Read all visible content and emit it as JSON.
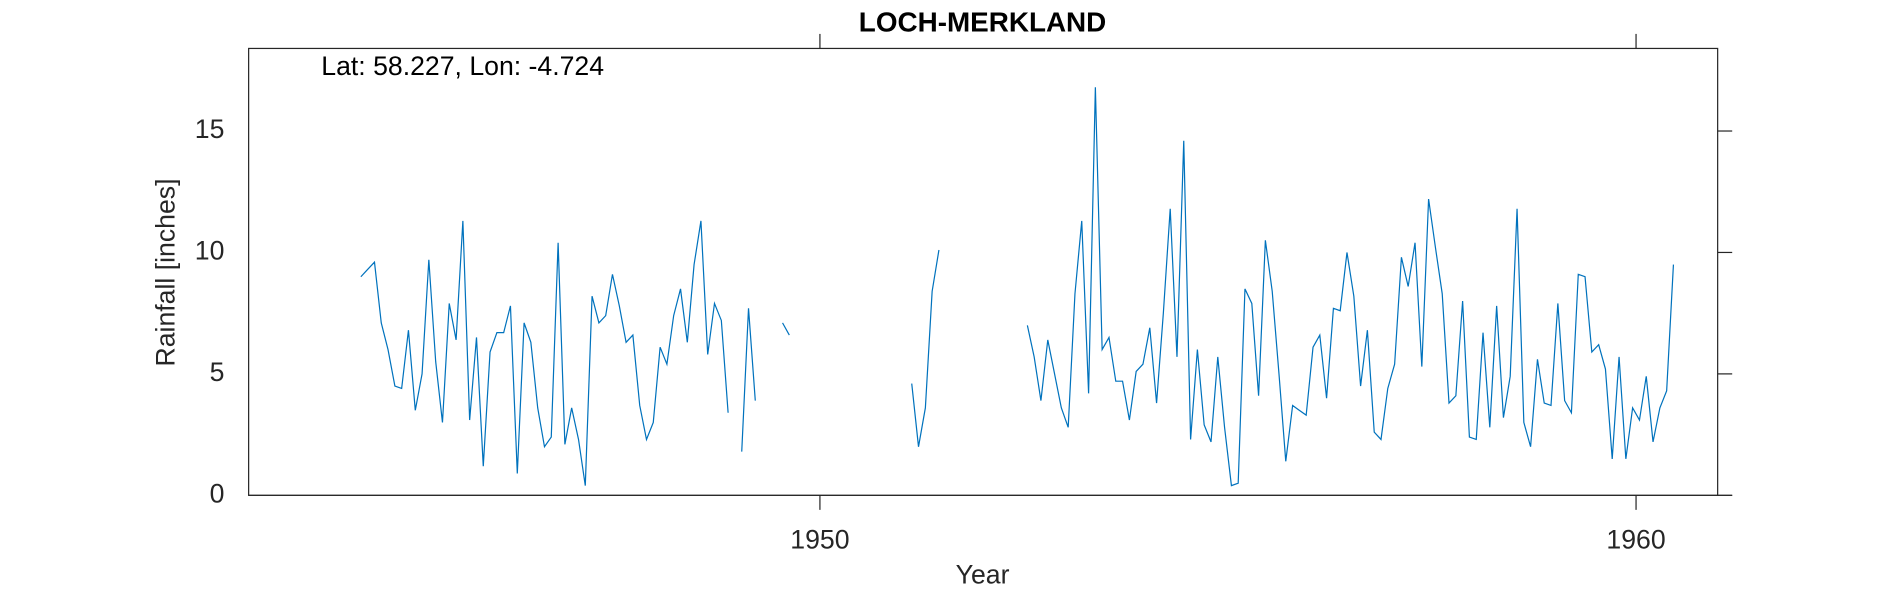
{
  "chart_data": {
    "type": "line",
    "title": "LOCH-MERKLAND",
    "annotation": "Lat: 58.227, Lon: -4.724",
    "x_label": "Year",
    "y_label": "Rainfall [inches]",
    "color": "#0072bd",
    "xlim": [
      1943,
      1961
    ],
    "xticks": [
      1950,
      1960
    ],
    "ylim": [
      0,
      18.4
    ],
    "yticks": [
      0,
      5,
      10,
      15
    ],
    "x": [
      1944.375,
      1944.458,
      1944.542,
      1944.625,
      1944.708,
      1944.792,
      1944.875,
      1944.958,
      1945.042,
      1945.125,
      1945.208,
      1945.292,
      1945.375,
      1945.458,
      1945.542,
      1945.625,
      1945.708,
      1945.792,
      1945.875,
      1945.958,
      1946.042,
      1946.125,
      1946.208,
      1946.292,
      1946.375,
      1946.458,
      1946.542,
      1946.625,
      1946.708,
      1946.792,
      1946.875,
      1946.958,
      1947.042,
      1947.125,
      1947.208,
      1947.292,
      1947.375,
      1947.458,
      1947.542,
      1947.625,
      1947.708,
      1947.792,
      1947.875,
      1947.958,
      1948.042,
      1948.125,
      1948.208,
      1948.292,
      1948.375,
      1948.458,
      1948.542,
      1948.625,
      1948.708,
      1948.792,
      1948.875,
      1948.958,
      1949.042,
      1949.125,
      1949.208,
      1949.292,
      1949.375,
      1949.458,
      1949.542,
      1949.625,
      1949.708,
      1949.792,
      1949.875,
      1949.958,
      1950.042,
      1950.125,
      1950.208,
      1950.292,
      1950.375,
      1950.458,
      1950.542,
      1950.625,
      1950.708,
      1950.792,
      1950.875,
      1950.958,
      1951.042,
      1951.125,
      1951.208,
      1951.292,
      1951.375,
      1951.458,
      1951.542,
      1951.625,
      1951.708,
      1951.792,
      1951.875,
      1951.958,
      1952.042,
      1952.125,
      1952.208,
      1952.292,
      1952.375,
      1952.458,
      1952.542,
      1952.625,
      1952.708,
      1952.792,
      1952.875,
      1952.958,
      1953.042,
      1953.125,
      1953.208,
      1953.292,
      1953.375,
      1953.458,
      1953.542,
      1953.625,
      1953.708,
      1953.792,
      1953.875,
      1953.958,
      1954.042,
      1954.125,
      1954.208,
      1954.292,
      1954.375,
      1954.458,
      1954.542,
      1954.625,
      1954.708,
      1954.792,
      1954.875,
      1954.958,
      1955.042,
      1955.125,
      1955.208,
      1955.292,
      1955.375,
      1955.458,
      1955.542,
      1955.625,
      1955.708,
      1955.792,
      1955.875,
      1955.958,
      1956.042,
      1956.125,
      1956.208,
      1956.292,
      1956.375,
      1956.458,
      1956.542,
      1956.625,
      1956.708,
      1956.792,
      1956.875,
      1956.958,
      1957.042,
      1957.125,
      1957.208,
      1957.292,
      1957.375,
      1957.458,
      1957.542,
      1957.625,
      1957.708,
      1957.792,
      1957.875,
      1957.958,
      1958.042,
      1958.125,
      1958.208,
      1958.292,
      1958.375,
      1958.458,
      1958.542,
      1958.625,
      1958.708,
      1958.792,
      1958.875,
      1958.958,
      1959.042,
      1959.125,
      1959.208,
      1959.292,
      1959.375,
      1959.458,
      1959.542,
      1959.625,
      1959.708,
      1959.792,
      1959.875,
      1959.958,
      1960.042,
      1960.125,
      1960.208,
      1960.292,
      1960.375,
      1960.458
    ],
    "values": [
      9.0,
      9.3,
      9.6,
      7.1,
      6.0,
      4.5,
      4.4,
      6.8,
      3.5,
      5.0,
      9.7,
      5.5,
      3.0,
      7.9,
      6.4,
      11.3,
      3.1,
      6.5,
      1.2,
      5.9,
      6.7,
      6.7,
      7.8,
      0.9,
      7.1,
      6.3,
      3.6,
      2.0,
      2.4,
      10.4,
      2.1,
      3.6,
      2.3,
      0.4,
      8.2,
      7.1,
      7.4,
      9.1,
      7.8,
      6.3,
      6.6,
      3.7,
      2.3,
      3.0,
      6.1,
      5.4,
      7.4,
      8.5,
      6.3,
      9.5,
      11.3,
      5.8,
      7.9,
      7.2,
      3.4,
      null,
      1.8,
      7.7,
      3.9,
      null,
      null,
      null,
      7.1,
      6.6,
      null,
      null,
      null,
      null,
      null,
      null,
      null,
      null,
      null,
      null,
      null,
      null,
      null,
      null,
      null,
      null,
      null,
      4.6,
      2.0,
      3.6,
      8.4,
      10.1,
      null,
      null,
      null,
      null,
      null,
      null,
      null,
      null,
      null,
      null,
      null,
      null,
      7.0,
      5.7,
      3.9,
      6.4,
      5.0,
      3.6,
      2.8,
      8.3,
      11.3,
      4.2,
      16.8,
      6.0,
      6.5,
      4.7,
      4.7,
      3.1,
      5.1,
      5.4,
      6.9,
      3.8,
      7.5,
      11.8,
      5.7,
      14.6,
      2.3,
      6.0,
      2.9,
      2.2,
      5.7,
      2.8,
      0.4,
      0.5,
      8.5,
      7.9,
      4.1,
      10.5,
      8.4,
      5.0,
      1.4,
      3.7,
      3.5,
      3.3,
      6.1,
      6.6,
      4.0,
      7.7,
      7.6,
      10.0,
      8.2,
      4.5,
      6.8,
      2.6,
      2.3,
      4.4,
      5.4,
      9.8,
      8.6,
      10.4,
      5.3,
      12.2,
      10.2,
      8.3,
      3.8,
      4.1,
      8.0,
      2.4,
      2.3,
      6.7,
      2.8,
      7.8,
      3.2,
      4.9,
      11.8,
      3.0,
      2.0,
      5.6,
      3.8,
      3.7,
      7.9,
      3.9,
      3.4,
      9.1,
      9.0,
      5.9,
      6.2,
      5.2,
      1.5,
      5.7,
      1.5,
      3.6,
      3.1,
      4.9,
      2.2,
      3.6,
      4.3,
      9.5
    ]
  }
}
